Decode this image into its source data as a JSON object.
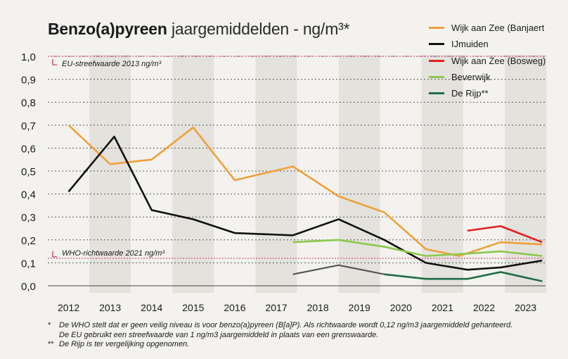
{
  "title": {
    "bold": "Benzo(a)pyreen",
    "light": "jaargemiddelden - ng/m³*"
  },
  "chart_data": {
    "type": "line",
    "title": "Benzo(a)pyreen jaargemiddelden - ng/m³*",
    "xlabel": "",
    "ylabel": "",
    "categories": [
      "2012",
      "2013",
      "2014",
      "2015",
      "2016",
      "2017",
      "2018",
      "2019",
      "2020",
      "2021",
      "2022",
      "2023"
    ],
    "y_ticks": [
      "0,0",
      "0,1",
      "0,2",
      "0,3",
      "0,4",
      "0,5",
      "0,6",
      "0,7",
      "0,8",
      "0,9",
      "1,0"
    ],
    "ylim": [
      0,
      1.0
    ],
    "grid": true,
    "legend_position": "top-right",
    "reference_lines": [
      {
        "label": "EU-streefwaarde 2013 ng/m³",
        "value": 1.0,
        "color": "#d2356a"
      },
      {
        "label": "WHO-richtwaarde 2021  ng/m³",
        "value": 0.12,
        "color": "#d2356a"
      }
    ],
    "series": [
      {
        "name": "Wijk aan Zee (Banjaert",
        "color": "#f0a03a",
        "points": [
          [
            2012.0,
            0.7
          ],
          [
            2013.0,
            0.53
          ],
          [
            2014.0,
            0.55
          ],
          [
            2015.0,
            0.69
          ],
          [
            2016.0,
            0.46
          ],
          [
            2017.4,
            0.52
          ],
          [
            2018.5,
            0.39
          ],
          [
            2019.6,
            0.32
          ],
          [
            2020.6,
            0.16
          ],
          [
            2021.4,
            0.13
          ],
          [
            2022.4,
            0.19
          ],
          [
            2023.4,
            0.18
          ]
        ]
      },
      {
        "name": "IJmuiden",
        "color": "#111111",
        "points": [
          [
            2012.0,
            0.41
          ],
          [
            2013.1,
            0.65
          ],
          [
            2014.0,
            0.33
          ],
          [
            2015.0,
            0.29
          ],
          [
            2016.0,
            0.23
          ],
          [
            2017.4,
            0.22
          ],
          [
            2018.5,
            0.29
          ],
          [
            2019.6,
            0.2
          ],
          [
            2020.6,
            0.1
          ],
          [
            2021.6,
            0.07
          ],
          [
            2022.4,
            0.08
          ],
          [
            2023.4,
            0.11
          ]
        ]
      },
      {
        "name": "Wijk aan Zee (Bosweg)",
        "color": "#e41e1e",
        "points": [
          [
            2021.6,
            0.24
          ],
          [
            2022.4,
            0.26
          ],
          [
            2023.4,
            0.19
          ]
        ]
      },
      {
        "name": "Beverwijk",
        "color": "#8cc84b",
        "points": [
          [
            2017.4,
            0.19
          ],
          [
            2018.5,
            0.2
          ],
          [
            2019.6,
            0.17
          ],
          [
            2020.6,
            0.13
          ],
          [
            2021.6,
            0.14
          ],
          [
            2022.4,
            0.15
          ],
          [
            2023.4,
            0.13
          ]
        ]
      },
      {
        "name": "De Rijp**",
        "color": "#1e6e46",
        "points": [
          [
            2017.4,
            0.05
          ],
          [
            2018.5,
            0.09
          ],
          [
            2019.6,
            0.05
          ],
          [
            2020.6,
            0.03
          ],
          [
            2021.6,
            0.03
          ],
          [
            2022.4,
            0.06
          ],
          [
            2023.4,
            0.02
          ]
        ],
        "early_color": "#555555",
        "early_until": 2019.6
      }
    ]
  },
  "footnotes": [
    {
      "mark": "*",
      "text": "De WHO stelt dat er geen veilig niveau is voor benzo(a)pyreen (B[a]P). Als richtwaarde wordt 0,12 ng/m3 jaargemiddeld gehanteerd."
    },
    {
      "mark": "",
      "text": "De EU gebruikt een streefwaarde van 1 ng/m3 jaargemiddeld in plaats van een grenswaarde."
    },
    {
      "mark": "**",
      "text": "De Rijp is ter vergelijking opgenomen."
    }
  ],
  "colors": {
    "background": "#f3f2ef",
    "band_light": "#f3f2ef",
    "band_dark": "#e4e2dd",
    "grid": "#333333"
  }
}
